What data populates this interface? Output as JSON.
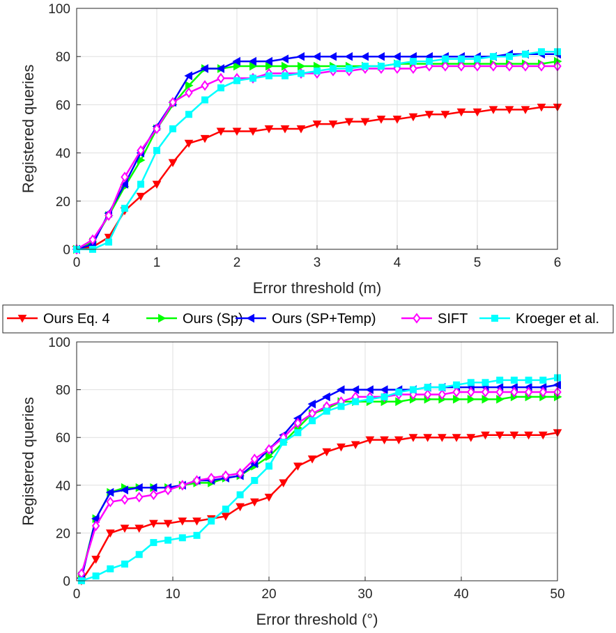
{
  "chart_data": [
    {
      "type": "line",
      "xlabel": "Error threshold (m)",
      "ylabel": "Registered queries",
      "xlim": [
        0,
        6
      ],
      "ylim": [
        0,
        100
      ],
      "xticks": [
        "0",
        "1",
        "2",
        "3",
        "4",
        "5",
        "6"
      ],
      "yticks": [
        "0",
        "20",
        "40",
        "60",
        "80",
        "100"
      ],
      "grid": true,
      "x": [
        0,
        0.2,
        0.4,
        0.6,
        0.8,
        1.0,
        1.2,
        1.4,
        1.6,
        1.8,
        2.0,
        2.2,
        2.4,
        2.6,
        2.8,
        3.0,
        3.2,
        3.4,
        3.6,
        3.8,
        4.0,
        4.2,
        4.4,
        4.6,
        4.8,
        5.0,
        5.2,
        5.4,
        5.6,
        5.8,
        6.0
      ],
      "series": [
        {
          "name": "Ours Eq. 4",
          "values": [
            0,
            1,
            5,
            16,
            22,
            27,
            36,
            44,
            46,
            49,
            49,
            49,
            50,
            50,
            50,
            52,
            52,
            53,
            53,
            54,
            54,
            55,
            56,
            56,
            57,
            57,
            58,
            58,
            58,
            59,
            59
          ]
        },
        {
          "name": "Ours (Sp)",
          "values": [
            0,
            3,
            14,
            26,
            37,
            50,
            60,
            68,
            75,
            75,
            76,
            76,
            76,
            76,
            76,
            76,
            76,
            76,
            76,
            76,
            77,
            77,
            77,
            77,
            77,
            77,
            77,
            77,
            77,
            77,
            78
          ]
        },
        {
          "name": "Ours (SP+Temp)",
          "values": [
            0,
            2,
            15,
            27,
            40,
            51,
            61,
            72,
            75,
            75,
            78,
            78,
            78,
            79,
            80,
            80,
            80,
            80,
            80,
            80,
            80,
            80,
            80,
            80,
            80,
            80,
            80,
            81,
            81,
            81,
            81
          ]
        },
        {
          "name": "SIFT",
          "values": [
            0,
            4,
            14,
            30,
            41,
            50,
            61,
            65,
            68,
            71,
            71,
            71,
            73,
            73,
            73,
            73,
            74,
            74,
            75,
            75,
            75,
            75,
            76,
            76,
            76,
            76,
            76,
            76,
            76,
            76,
            76
          ]
        },
        {
          "name": "Kroeger et al.",
          "values": [
            0,
            0,
            3,
            17,
            27,
            41,
            50,
            56,
            62,
            67,
            70,
            71,
            72,
            72,
            73,
            74,
            75,
            75,
            76,
            76,
            77,
            78,
            78,
            79,
            79,
            79,
            80,
            80,
            81,
            82,
            82
          ]
        }
      ]
    },
    {
      "type": "line",
      "xlabel": "Error threshold (°)",
      "ylabel": "Registered queries",
      "xlim": [
        0,
        50
      ],
      "ylim": [
        0,
        100
      ],
      "xticks": [
        "0",
        "10",
        "20",
        "30",
        "40",
        "50"
      ],
      "yticks": [
        "0",
        "20",
        "40",
        "60",
        "80",
        "100"
      ],
      "grid": true,
      "x": [
        0.5,
        2,
        3.5,
        5,
        6.5,
        8,
        9.5,
        11,
        12.5,
        14,
        15.5,
        17,
        18.5,
        20,
        21.5,
        23,
        24.5,
        26,
        27.5,
        29,
        30.5,
        32,
        33.5,
        35,
        36.5,
        38,
        39.5,
        41,
        42.5,
        44,
        45.5,
        47,
        48.5,
        50
      ],
      "series": [
        {
          "name": "Ours Eq. 4",
          "values": [
            0,
            9,
            20,
            22,
            22,
            24,
            24,
            25,
            25,
            26,
            27,
            31,
            33,
            35,
            41,
            48,
            51,
            54,
            56,
            57,
            59,
            59,
            59,
            60,
            60,
            60,
            60,
            60,
            61,
            61,
            61,
            61,
            61,
            62
          ]
        },
        {
          "name": "Ours (Sp)",
          "values": [
            2,
            26,
            37,
            39,
            39,
            39,
            39,
            40,
            41,
            41,
            43,
            44,
            48,
            52,
            58,
            64,
            70,
            72,
            75,
            75,
            75,
            75,
            75,
            76,
            76,
            76,
            76,
            76,
            76,
            76,
            77,
            77,
            77,
            77
          ]
        },
        {
          "name": "Ours (SP+Temp)",
          "values": [
            1,
            26,
            37,
            38,
            39,
            39,
            39,
            40,
            42,
            42,
            43,
            44,
            49,
            55,
            61,
            68,
            74,
            77,
            80,
            80,
            80,
            80,
            80,
            80,
            81,
            81,
            81,
            81,
            81,
            81,
            81,
            81,
            81,
            82
          ]
        },
        {
          "name": "SIFT",
          "values": [
            3,
            23,
            33,
            34,
            35,
            36,
            38,
            40,
            42,
            43,
            44,
            45,
            51,
            55,
            60,
            66,
            70,
            73,
            75,
            77,
            77,
            77,
            78,
            78,
            78,
            78,
            79,
            79,
            79,
            79,
            79,
            79,
            79,
            79
          ]
        },
        {
          "name": "Kroeger et al.",
          "values": [
            0,
            2,
            5,
            7,
            11,
            16,
            17,
            18,
            19,
            25,
            30,
            36,
            42,
            48,
            58,
            62,
            67,
            71,
            73,
            75,
            76,
            77,
            79,
            80,
            81,
            81,
            82,
            83,
            83,
            84,
            84,
            84,
            84,
            85
          ]
        }
      ]
    }
  ],
  "series_styles": [
    {
      "color": "#ff0000",
      "marker": "triangle-down"
    },
    {
      "color": "#00ff00",
      "marker": "triangle-right"
    },
    {
      "color": "#0000ff",
      "marker": "triangle-left"
    },
    {
      "color": "#ff00ff",
      "marker": "diamond"
    },
    {
      "color": "#00ffff",
      "marker": "square"
    }
  ],
  "legend": {
    "entries": [
      "Ours Eq. 4",
      "Ours (Sp)",
      "Ours (SP+Temp)",
      "SIFT",
      "Kroeger et al."
    ],
    "placement": "between-plots"
  }
}
